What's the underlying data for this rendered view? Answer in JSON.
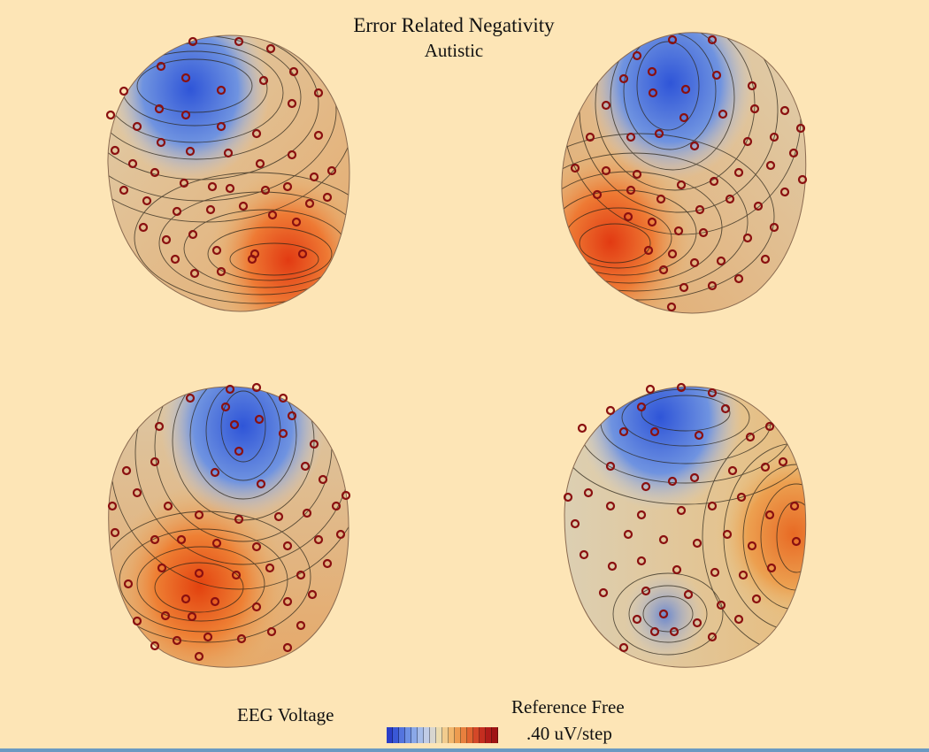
{
  "figure": {
    "title": "Error Related Negativity",
    "subtitle": "Autistic",
    "footer_left": "EEG Voltage",
    "legend_title": "Reference Free",
    "legend_step": ".40 uV/step"
  },
  "colorbar_colors": [
    "#2a3ec8",
    "#3a58d6",
    "#5474de",
    "#6e90e4",
    "#8aa8e8",
    "#a6bce8",
    "#c0cce6",
    "#d8d6d0",
    "#ecdcb0",
    "#f2cc8e",
    "#f2b66c",
    "#ee9c50",
    "#e8803e",
    "#e06430",
    "#d44828",
    "#c42e20",
    "#b01c1a",
    "#a01414"
  ],
  "views": [
    {
      "name": "head-view-right-lateral"
    },
    {
      "name": "head-view-left-lateral"
    },
    {
      "name": "head-view-posterior"
    },
    {
      "name": "head-view-posterior-oblique"
    }
  ]
}
